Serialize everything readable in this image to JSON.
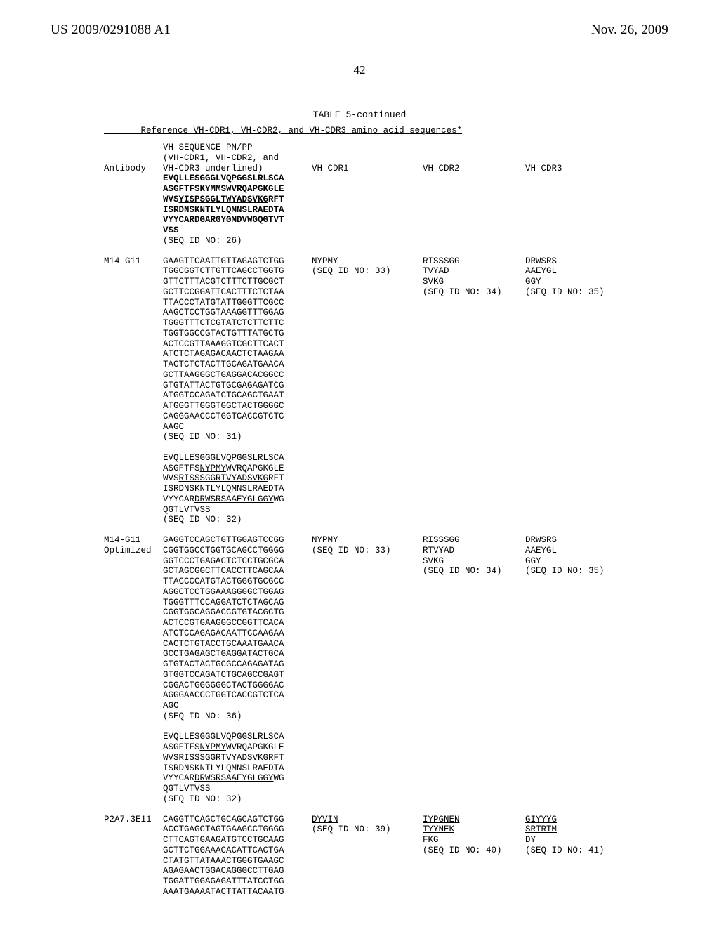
{
  "header": {
    "left": "US 2009/0291088 A1",
    "right": "Nov. 26, 2009",
    "pageNumber": "42"
  },
  "tableCaption": "TABLE 5-continued",
  "refLine": "Reference VH-CDR1, VH-CDR2, and VH-CDR3 amino acid sequences*",
  "columns": {
    "antibody": "Antibody",
    "subhead_l1": "VH SEQUENCE PN/PP",
    "subhead_l2": "(VH-CDR1, VH-CDR2, and",
    "subhead_l3": "VH-CDR3 underlined)",
    "vhcdr1": "VH CDR1",
    "vhcdr2": "VH CDR2",
    "vhcdr3": "VH CDR3"
  },
  "rows": [
    {
      "antibody": "",
      "seq": {
        "lines": [
          {
            "pre": "",
            "b": "EVQLLESGGGLVQPGGSLRLSCA",
            "post": ""
          },
          {
            "pre": "",
            "b": "ASGFTFS",
            "u": "KYMMS",
            "post": "WVRQAPGKGLE",
            "allBold": true
          },
          {
            "pre": "",
            "b": "WVS",
            "u": "YISPSGGLTWYADSVKG",
            "post": "RFT",
            "allBold": true
          },
          {
            "pre": "",
            "b": "ISRDNSKNTLYLQMNSLRAEDTA",
            "post": ""
          },
          {
            "pre": "",
            "b": "VYYCAR",
            "u": "DGARGYGMDV",
            "post": "WGQGTVT",
            "allBold": true
          },
          {
            "pre": "",
            "b": "VSS",
            "post": ""
          },
          {
            "plain": "(SEQ ID NO: 26)"
          }
        ]
      },
      "cdr1": "",
      "cdr2": "",
      "cdr3": ""
    },
    {
      "antibody": "M14-G11",
      "seq": {
        "lines": [
          {
            "plain": "GAAGTTCAATTGTTAGAGTCTGG"
          },
          {
            "plain": "TGGCGGTCTTGTTCAGCCTGGTG"
          },
          {
            "plain": "GTTCTTTACGTCTTTCTTGCGCT"
          },
          {
            "plain": "GCTTCCGGATTCACTTTCTCTAA"
          },
          {
            "plain": "TTACCCTATGTATTGGGTTCGCC"
          },
          {
            "plain": "AAGCTCCTGGTAAAGGTTTGGAG"
          },
          {
            "plain": "TGGGTTTCTCGTATCTCTTCTTC"
          },
          {
            "plain": "TGGTGGCCGTACTGTTTATGCTG"
          },
          {
            "plain": "ACTCCGTTAAAGGTCGCTTCACT"
          },
          {
            "plain": "ATCTCTAGAGACAACTCTAAGAA"
          },
          {
            "plain": "TACTCTCTACTTGCAGATGAACA"
          },
          {
            "plain": "GCTTAAGGGCTGAGGACACGGCC"
          },
          {
            "plain": "GTGTATTACTGTGCGAGAGATCG"
          },
          {
            "plain": "ATGGTCCAGATCTGCAGCTGAAT"
          },
          {
            "plain": "ATGGGTTGGGTGGCTACTGGGGC"
          },
          {
            "plain": "CAGGGAACCCTGGTCACCGTCTC"
          },
          {
            "plain": "AAGC"
          },
          {
            "plain": "(SEQ ID NO: 31)"
          },
          {
            "plain": ""
          },
          {
            "plain": "EVQLLESGGGLVQPGGSLRLSCA"
          },
          {
            "pre": "ASGFTFS",
            "u": "NYPMY",
            "post": "WVRQAPGKGLE"
          },
          {
            "pre": "WVS",
            "u": "RISSSGGRTVYADSVKG",
            "post": "RFT"
          },
          {
            "plain": "ISRDNSKNTLYLQMNSLRAEDTA"
          },
          {
            "pre": "VYYCAR",
            "u": "DRWSRSAAEYGLGGY",
            "post": "WG"
          },
          {
            "plain": "QGTLVTVSS"
          },
          {
            "plain": "(SEQ ID NO: 32)"
          }
        ]
      },
      "cdr1": "NYPMY\n(SEQ ID NO: 33)",
      "cdr2": "RISSSGG\nTVYAD\nSVKG\n(SEQ ID NO: 34)",
      "cdr3": "DRWSRS\nAAEYGL\nGGY\n(SEQ ID NO: 35)"
    },
    {
      "antibody": "M14-G11\nOptimized",
      "seq": {
        "lines": [
          {
            "plain": "GAGGTCCAGCTGTTGGAGTCCGG"
          },
          {
            "plain": "CGGTGGCCTGGTGCAGCCTGGGG"
          },
          {
            "plain": "GGTCCCTGAGACTCTCCTGCGCA"
          },
          {
            "plain": "GCTAGCGGCTTCACCTTCAGCAA"
          },
          {
            "plain": "TTACCCCATGTACTGGGTGCGCC"
          },
          {
            "plain": "AGGCTCCTGGAAAGGGGCTGGAG"
          },
          {
            "plain": "TGGGTTTCCAGGATCTCTAGCAG"
          },
          {
            "plain": "CGGTGGCAGGACCGTGTACGCTG"
          },
          {
            "plain": "ACTCCGTGAAGGGCCGGTTCACA"
          },
          {
            "plain": "ATCTCCAGAGACAATTCCAAGAA"
          },
          {
            "plain": "CACTCTGTACCTGCAAATGAACA"
          },
          {
            "plain": "GCCTGAGAGCTGAGGATACTGCA"
          },
          {
            "plain": "GTGTACTACTGCGCCAGAGATAG"
          },
          {
            "plain": "GTGGTCCAGATCTGCAGCCGAGT"
          },
          {
            "plain": "CGGACTGGGGGGCTACTGGGGAC"
          },
          {
            "plain": "AGGGAACCCTGGTCACCGTCTCA"
          },
          {
            "plain": "AGC"
          },
          {
            "plain": "(SEQ ID NO: 36)"
          },
          {
            "plain": ""
          },
          {
            "plain": "EVQLLESGGGLVQPGGSLRLSCA"
          },
          {
            "pre": "ASGFTFS",
            "u": "NYPMY",
            "post": "WVRQAPGKGLE"
          },
          {
            "pre": "WVS",
            "u": "RISSSGGRTVYADSVKG",
            "post": "RFT"
          },
          {
            "plain": "ISRDNSKNTLYLQMNSLRAEDTA"
          },
          {
            "pre": "VYYCAR",
            "u": "DRWSRSAAEYGLGGY",
            "post": "WG"
          },
          {
            "plain": "QGTLVTVSS"
          },
          {
            "plain": "(SEQ ID NO: 32)"
          }
        ]
      },
      "cdr1": "NYPMY\n(SEQ ID NO: 33)",
      "cdr2": "RISSSGG\nRTVYAD\nSVKG\n(SEQ ID NO: 34)",
      "cdr3": "DRWSRS\nAAEYGL\nGGY\n(SEQ ID NO: 35)"
    },
    {
      "antibody": "P2A7.3E11",
      "seq": {
        "lines": [
          {
            "plain": "CAGGTTCAGCTGCAGCAGTCTGG"
          },
          {
            "plain": "ACCTGAGCTAGTGAAGCCTGGGG"
          },
          {
            "plain": "CTTCAGTGAAGATGTCCTGCAAG"
          },
          {
            "plain": "GCTTCTGGAAACACATTCACTGA"
          },
          {
            "plain": "CTATGTTATAAACTGGGTGAAGC"
          },
          {
            "plain": "AGAGAACTGGACAGGGCCTTGAG"
          },
          {
            "plain": "TGGATTGGAGAGATTTATCCTGG"
          },
          {
            "plain": "AAATGAAAATACTTATTACAATG"
          }
        ]
      },
      "cdr1u": "DYVIN",
      "cdr1s": "(SEQ ID NO: 39)",
      "cdr2l1": "IYPGNEN",
      "cdr2l2": "TYYNEK",
      "cdr2l3": "FKG",
      "cdr2s": "(SEQ ID NO: 40)",
      "cdr3l1": "GIYYYG",
      "cdr3l2": "SRTRTM",
      "cdr3l3": "DY",
      "cdr3s": "(SEQ ID NO: 41)"
    }
  ]
}
